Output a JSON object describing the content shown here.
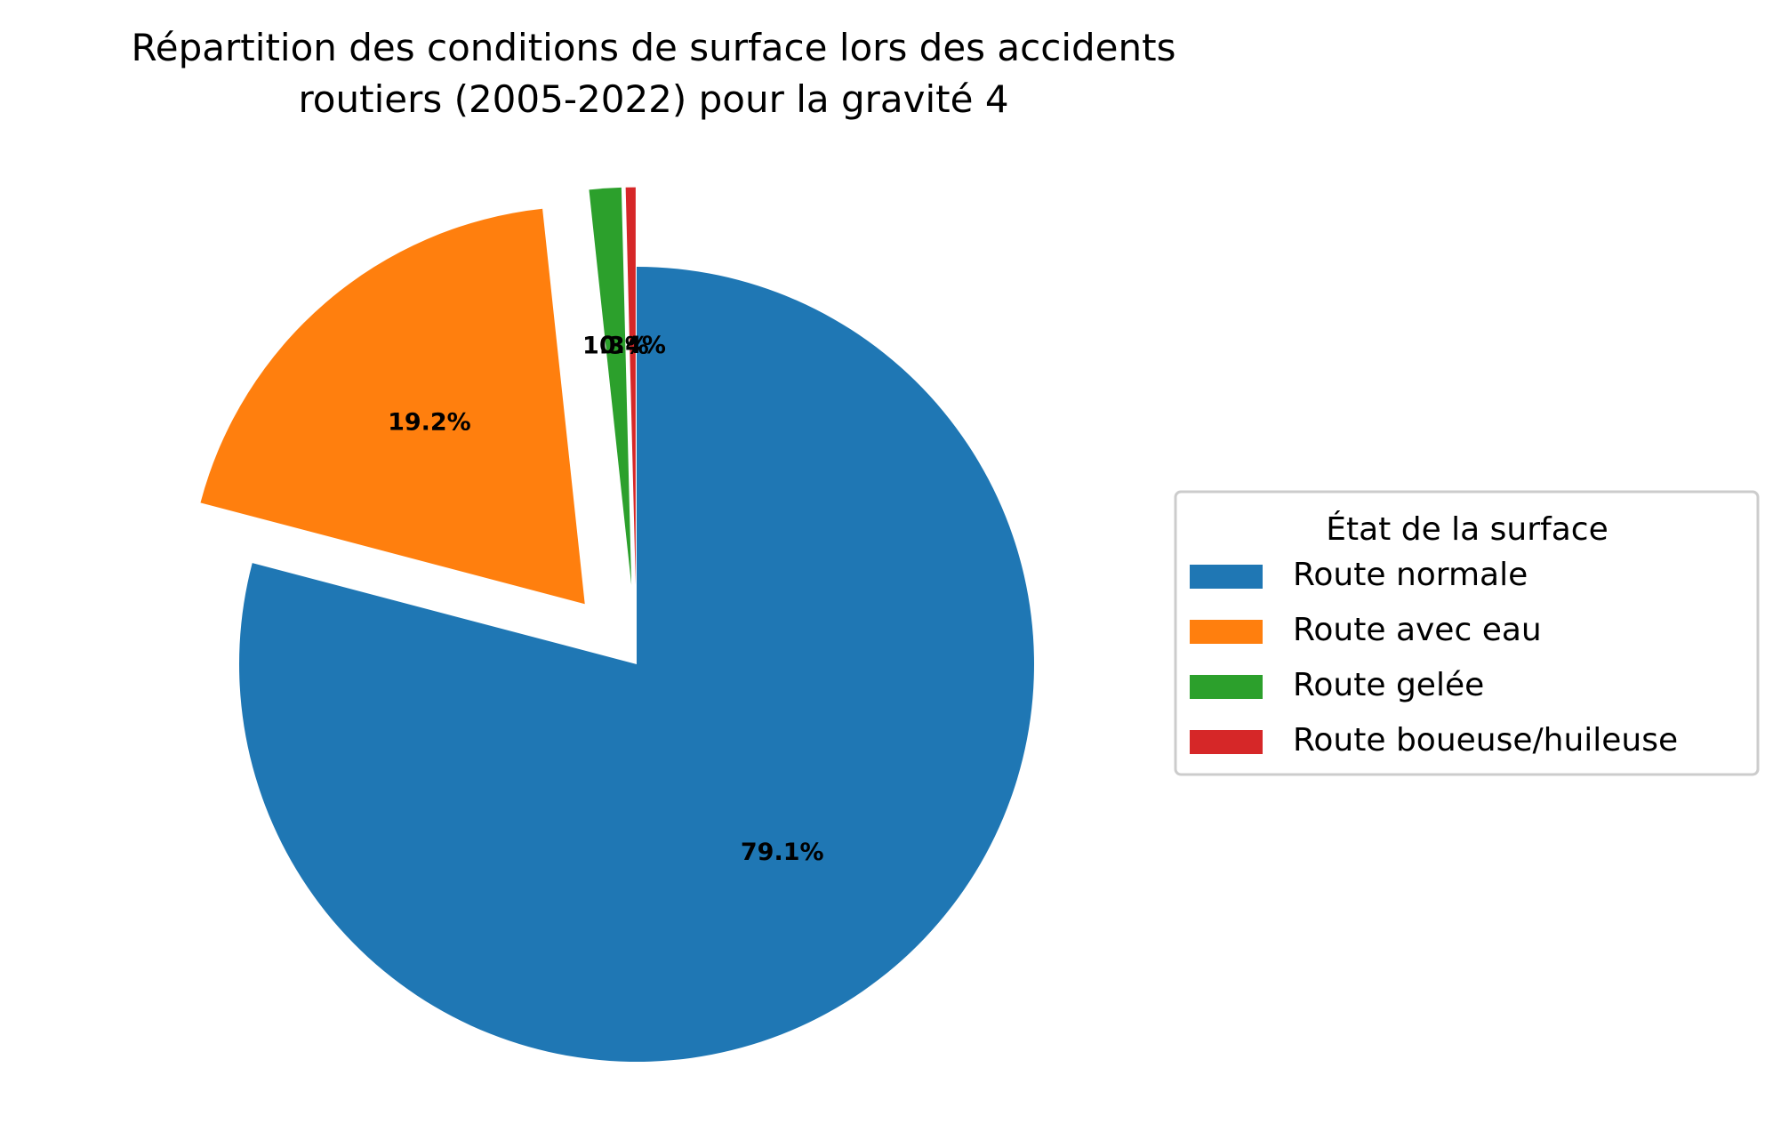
{
  "chart_data": {
    "type": "pie",
    "title": [
      "Répartition des conditions de surface lors des accidents",
      "routiers (2005-2022) pour la gravité 4"
    ],
    "start_angle_deg": 90,
    "direction": "clockwise",
    "slices": [
      {
        "label": "Route normale",
        "value": 79.1,
        "pct_label": "79.1%",
        "color": "#1f77b4",
        "exploded": false
      },
      {
        "label": "Route avec eau",
        "value": 19.2,
        "pct_label": "19.2%",
        "color": "#ff7f0e",
        "exploded": true
      },
      {
        "label": "Route gelée",
        "value": 1.3,
        "pct_label": "1.3%",
        "color": "#2ca02c",
        "exploded": true
      },
      {
        "label": "Route boueuse/huileuse",
        "value": 0.4,
        "pct_label": "0.4%",
        "color": "#d62728",
        "exploded": true
      }
    ],
    "legend": {
      "title": "État de la surface",
      "placement": "right"
    }
  }
}
